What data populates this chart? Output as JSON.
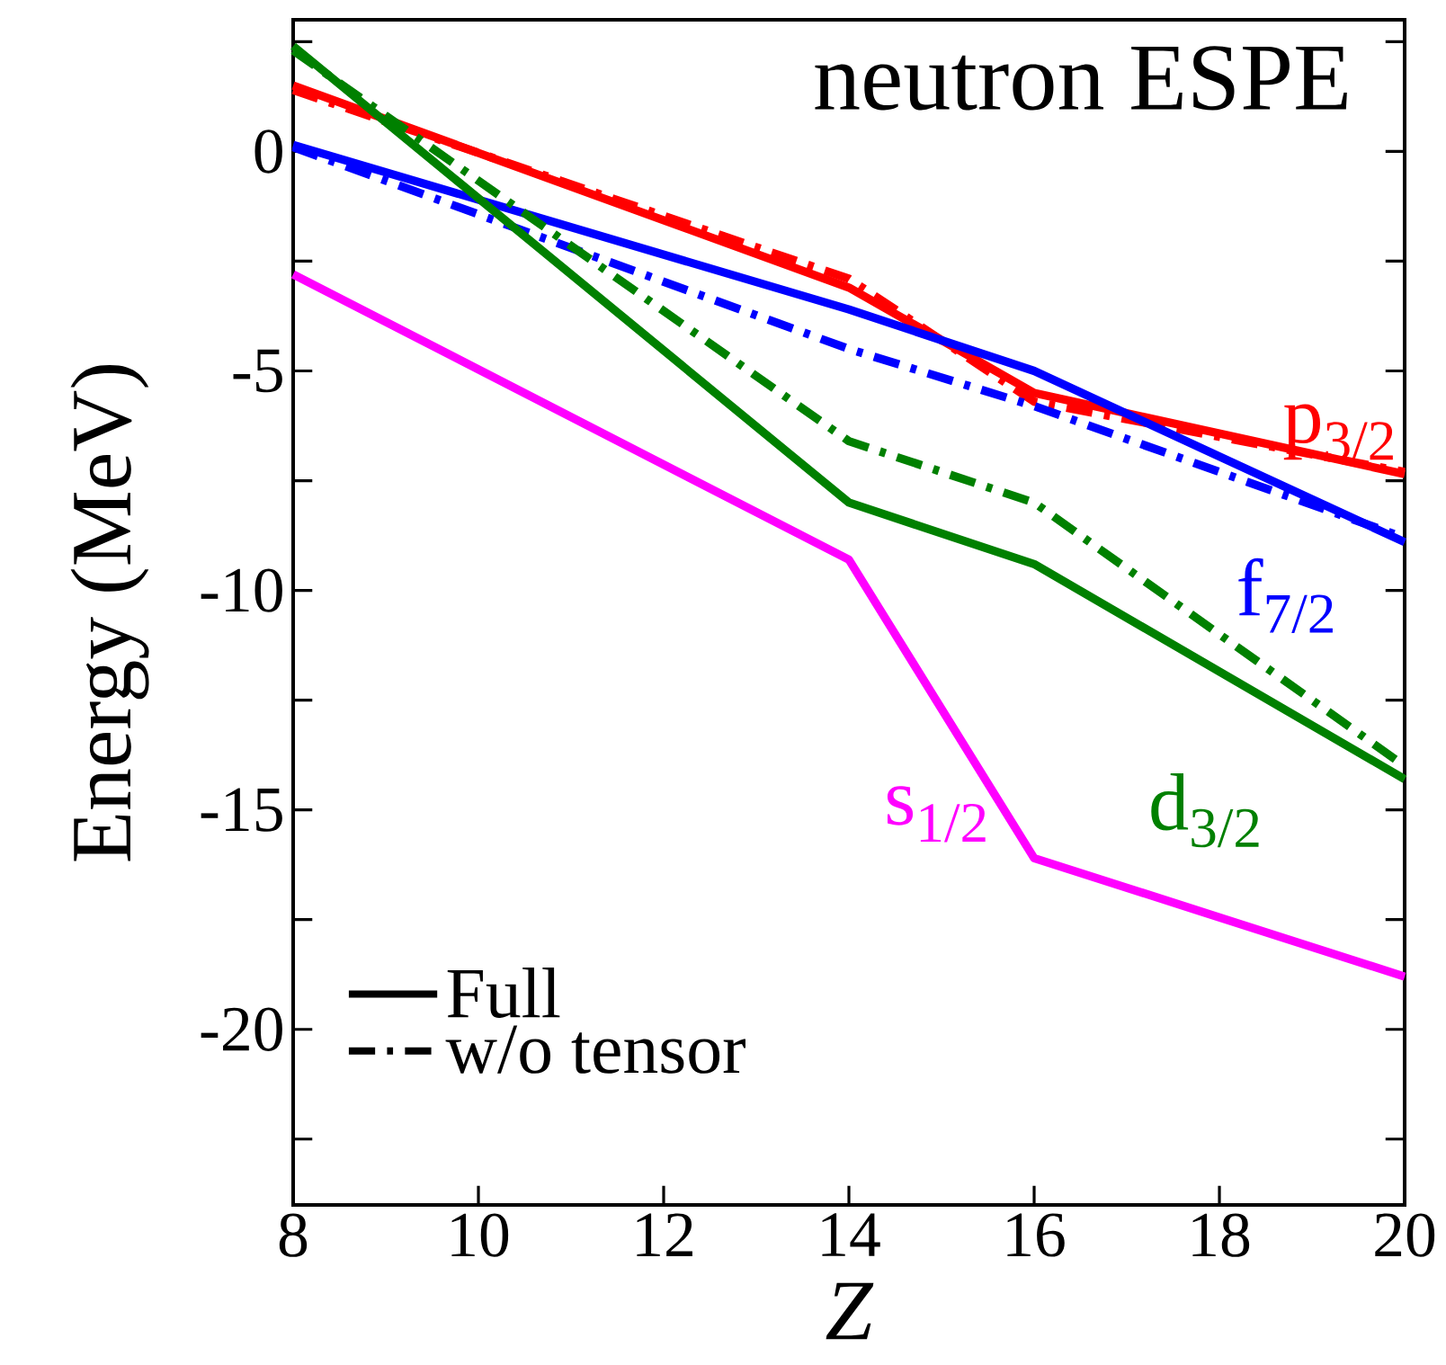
{
  "chart_data": {
    "type": "line",
    "title": "neutron ESPE",
    "xlabel": "Z",
    "ylabel": "Energy (MeV)",
    "x": [
      8,
      14,
      16,
      20
    ],
    "xlim": [
      8,
      20
    ],
    "xticks": [
      8,
      10,
      12,
      14,
      16,
      18,
      20
    ],
    "ylim": [
      -24,
      3
    ],
    "yticks": [
      {
        "value": -22.5,
        "label": null
      },
      -20,
      {
        "value": -17.5,
        "label": null
      },
      -15,
      {
        "value": -12.5,
        "label": null
      },
      -10,
      {
        "value": -7.5,
        "label": null
      },
      -5,
      {
        "value": -2.5,
        "label": null
      },
      0,
      {
        "value": 2.5,
        "label": null
      }
    ],
    "annotations": [
      "Full",
      "w/o tensor"
    ],
    "grid": false,
    "marker": "none",
    "series": [
      {
        "name": "p$_{3/2}$",
        "color": "#ff0000",
        "line_style": "solid",
        "values": [
          1.5,
          -3.1,
          -5.5,
          -7.35
        ]
      },
      {
        "color": "#ff0000",
        "line_style": "dashdot",
        "values": [
          1.4,
          -2.9,
          -5.7,
          -7.3
        ]
      },
      {
        "name": "f$_{7/2}$",
        "color": "#0000ff",
        "line_style": "solid",
        "values": [
          0.15,
          -3.6,
          -5.0,
          -8.9
        ]
      },
      {
        "color": "#0000ff",
        "line_style": "dashdot",
        "values": [
          0.1,
          -4.5,
          -5.8,
          -8.8
        ]
      },
      {
        "name": "d$_{3/2}$",
        "color": "#008000",
        "line_style": "solid",
        "values": [
          2.4,
          -8.0,
          -9.4,
          -14.3
        ]
      },
      {
        "color": "#008000",
        "line_style": "dashdot",
        "values": [
          2.3,
          -6.6,
          -8.0,
          -14.0
        ]
      },
      {
        "name": "s$_{1/2}$",
        "color": "#ff00ff",
        "line_style": "solid",
        "values": [
          -2.8,
          -9.3,
          -16.1,
          -18.8
        ]
      }
    ]
  }
}
